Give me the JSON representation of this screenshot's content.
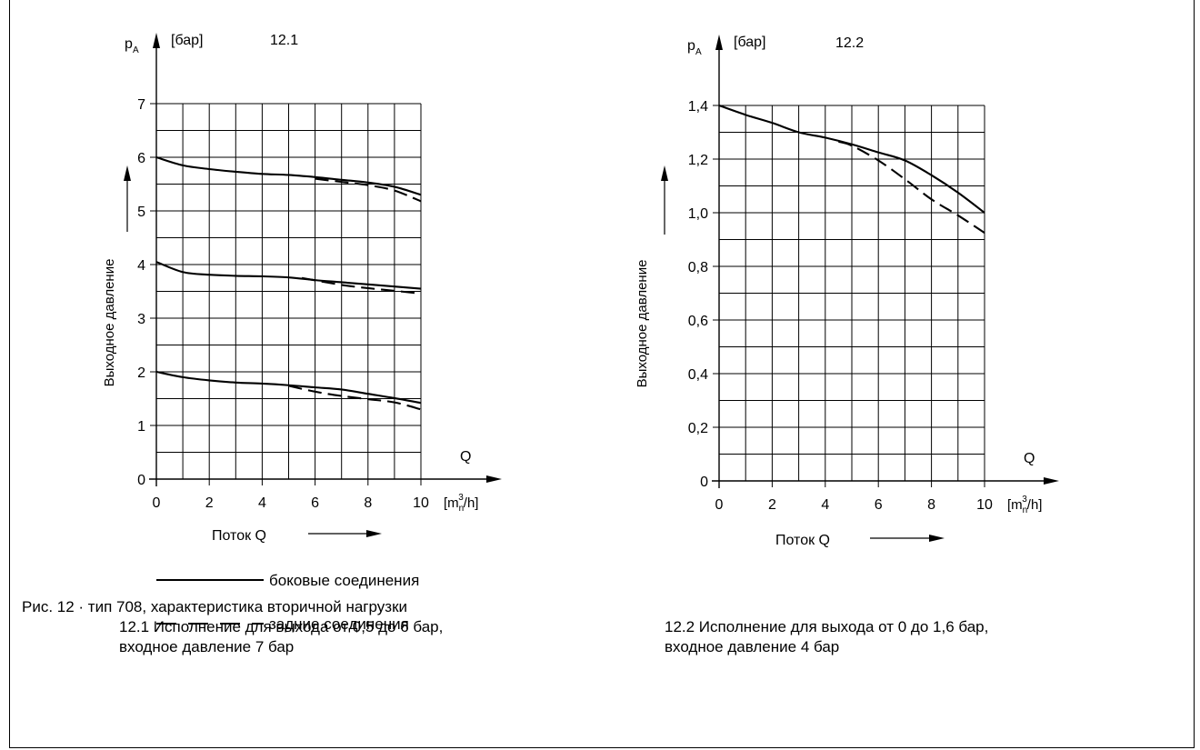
{
  "chart_data": [
    {
      "type": "line",
      "figure_label": "12.1",
      "y_symbol": "p",
      "y_symbol_sub": "A",
      "y_unit": "[бар]",
      "ylabel": "Выходное давление",
      "xlabel": "Поток Q",
      "x_symbol": "Q",
      "x_unit_prefix": "[m",
      "x_unit_sub": "n",
      "x_unit_sup": "3",
      "x_unit_suffix": "/h]",
      "xlim": [
        0,
        10
      ],
      "ylim": [
        0,
        7
      ],
      "x_ticks": [
        "0",
        "2",
        "4",
        "6",
        "8",
        "10"
      ],
      "y_ticks": [
        "0",
        "1",
        "2",
        "3",
        "4",
        "5",
        "6",
        "7"
      ],
      "grid": true,
      "series": [
        {
          "style": "solid",
          "x": [
            0,
            1,
            2,
            3,
            4,
            5,
            6,
            7,
            8,
            9,
            10
          ],
          "y": [
            6.0,
            5.85,
            5.78,
            5.73,
            5.69,
            5.67,
            5.63,
            5.58,
            5.53,
            5.45,
            5.3
          ]
        },
        {
          "style": "dashed",
          "x": [
            6,
            7,
            8,
            9,
            10
          ],
          "y": [
            5.6,
            5.54,
            5.48,
            5.38,
            5.18
          ]
        },
        {
          "style": "solid",
          "x": [
            0,
            1,
            2,
            3,
            4,
            5,
            6,
            7,
            8,
            9,
            10
          ],
          "y": [
            4.05,
            3.86,
            3.81,
            3.79,
            3.78,
            3.76,
            3.71,
            3.67,
            3.63,
            3.59,
            3.55
          ]
        },
        {
          "style": "dashed",
          "x": [
            5.5,
            7,
            8,
            9,
            10
          ],
          "y": [
            3.75,
            3.62,
            3.56,
            3.51,
            3.46
          ]
        },
        {
          "style": "solid",
          "x": [
            0,
            1,
            2,
            3,
            4,
            5,
            6,
            7,
            8,
            9,
            10
          ],
          "y": [
            2.0,
            1.9,
            1.84,
            1.8,
            1.78,
            1.75,
            1.71,
            1.67,
            1.59,
            1.51,
            1.42
          ]
        },
        {
          "style": "dashed",
          "x": [
            5,
            6,
            7,
            8,
            9,
            10
          ],
          "y": [
            1.74,
            1.63,
            1.55,
            1.49,
            1.43,
            1.3
          ]
        }
      ]
    },
    {
      "type": "line",
      "figure_label": "12.2",
      "y_symbol": "p",
      "y_symbol_sub": "A",
      "y_unit": "[бар]",
      "ylabel": "Выходное давление",
      "xlabel": "Поток Q",
      "x_symbol": "Q",
      "x_unit_prefix": "[m",
      "x_unit_sub": "n",
      "x_unit_sup": "3",
      "x_unit_suffix": "/h]",
      "xlim": [
        0,
        10
      ],
      "ylim": [
        0,
        1.4
      ],
      "x_ticks": [
        "0",
        "2",
        "4",
        "6",
        "8",
        "10"
      ],
      "y_ticks": [
        "0",
        "0,2",
        "0,4",
        "0,6",
        "0,8",
        "1,0",
        "1,2",
        "1,4"
      ],
      "grid": true,
      "series": [
        {
          "style": "solid",
          "x": [
            0,
            1,
            2,
            3,
            4,
            5,
            6,
            7,
            8,
            9,
            10
          ],
          "y": [
            1.4,
            1.365,
            1.335,
            1.3,
            1.28,
            1.255,
            1.225,
            1.195,
            1.14,
            1.075,
            1.0
          ]
        },
        {
          "style": "dashed",
          "x": [
            4.5,
            5,
            6,
            7,
            8,
            9,
            10
          ],
          "y": [
            1.265,
            1.25,
            1.195,
            1.125,
            1.05,
            0.99,
            0.925
          ]
        }
      ]
    }
  ],
  "legend": [
    {
      "style": "solid",
      "label": "боковые соединения"
    },
    {
      "style": "dashed",
      "label": "задние соединения"
    }
  ],
  "caption_left": {
    "line1": "Рис. 12 · тип 708, характеристика вторичной нагрузки",
    "line2": "12.1 Исполнение для выхода от 0,5 до 6 бар,",
    "line3": "входное давление 7 бар"
  },
  "caption_right": {
    "line1": "12.2 Исполнение для выхода от 0 до 1,6 бар,",
    "line2": "входное давление 4 бар"
  }
}
